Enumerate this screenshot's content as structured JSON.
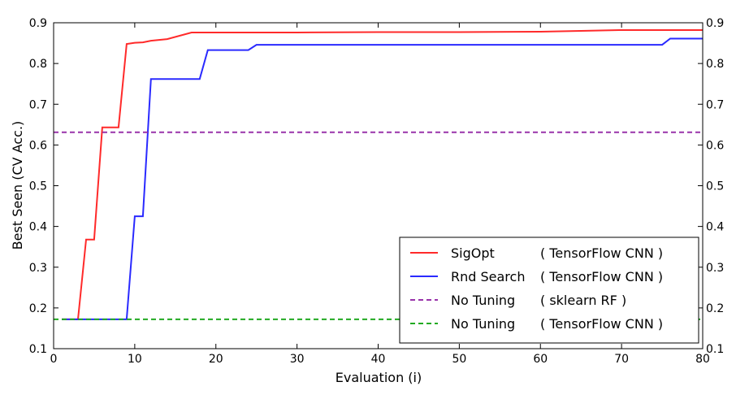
{
  "chart_data": {
    "type": "line",
    "title": "",
    "xlabel": "Evaluation (i)",
    "ylabel": "Best Seen (CV Acc.)",
    "xlim": [
      0,
      80
    ],
    "ylim": [
      0.1,
      0.9
    ],
    "xticks": [
      0,
      10,
      20,
      30,
      40,
      50,
      60,
      70,
      80
    ],
    "xtick_labels": [
      "0",
      "10",
      "20",
      "30",
      "40",
      "50",
      "60",
      "70",
      "80"
    ],
    "yticks": [
      0.1,
      0.2,
      0.3,
      0.4,
      0.5,
      0.6,
      0.7,
      0.8,
      0.9
    ],
    "ytick_labels": [
      "0.1",
      "0.2",
      "0.3",
      "0.4",
      "0.5",
      "0.6",
      "0.7",
      "0.8",
      "0.9"
    ],
    "right_ytick_labels": [
      "0.1",
      "0.2",
      "0.3",
      "0.4",
      "0.5",
      "0.6",
      "0.7",
      "0.8",
      "0.9"
    ],
    "grid": false,
    "legend_position": "lower-right",
    "series": [
      {
        "id": "sigopt",
        "name": "SigOpt",
        "qualifier": "( TensorFlow CNN )",
        "color": "#ff2a2a",
        "dash": "solid",
        "x": [
          1,
          3,
          4,
          5,
          6,
          8,
          9,
          10,
          11,
          12,
          14,
          17,
          20,
          30,
          40,
          50,
          60,
          65,
          70,
          80
        ],
        "y": [
          0.172,
          0.172,
          0.368,
          0.368,
          0.643,
          0.643,
          0.848,
          0.851,
          0.852,
          0.856,
          0.86,
          0.876,
          0.876,
          0.876,
          0.877,
          0.877,
          0.878,
          0.88,
          0.882,
          0.882
        ]
      },
      {
        "id": "rnd-search",
        "name": "Rnd Search",
        "qualifier": "( TensorFlow CNN )",
        "color": "#2a2aff",
        "dash": "solid",
        "x": [
          1,
          9,
          10,
          11,
          12,
          18,
          19,
          24,
          25,
          75,
          76,
          80
        ],
        "y": [
          0.172,
          0.172,
          0.425,
          0.425,
          0.762,
          0.762,
          0.833,
          0.833,
          0.846,
          0.846,
          0.861,
          0.861
        ]
      },
      {
        "id": "no-tuning-rf",
        "name": "No Tuning",
        "qualifier": "( sklearn RF )",
        "color": "#9933aa",
        "dash": "dashed",
        "x": [
          0,
          80
        ],
        "y": [
          0.631,
          0.631
        ]
      },
      {
        "id": "no-tuning-cnn",
        "name": "No Tuning",
        "qualifier": "( TensorFlow CNN )",
        "color": "#22aa22",
        "dash": "dashed",
        "x": [
          0,
          80
        ],
        "y": [
          0.172,
          0.172
        ]
      }
    ]
  }
}
